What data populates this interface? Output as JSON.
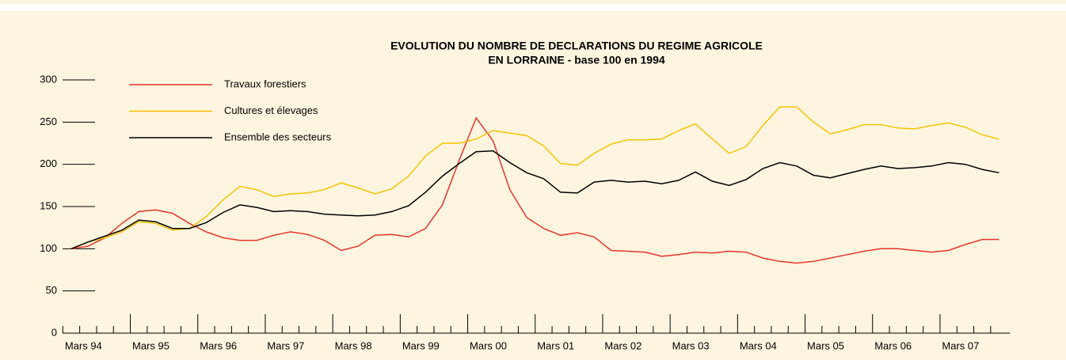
{
  "chart_data": {
    "type": "line",
    "title": "EVOLUTION DU NOMBRE DE DECLARATIONS DU REGIME AGRICOLE",
    "subtitle": "EN LORRAINE - base 100 en 1994",
    "categories": [
      null,
      "Mars 94",
      null,
      null,
      null,
      "Mars 95",
      null,
      null,
      null,
      "Mars 96",
      null,
      null,
      null,
      "Mars 97",
      null,
      null,
      null,
      "Mars 98",
      null,
      null,
      null,
      "Mars 99",
      null,
      null,
      null,
      "Mars 00",
      null,
      null,
      null,
      "Mars 01",
      null,
      null,
      null,
      "Mars 02",
      null,
      null,
      null,
      "Mars 03",
      null,
      null,
      null,
      "Mars 04",
      null,
      null,
      null,
      "Mars 05",
      null,
      null,
      null,
      "Mars 06",
      null,
      null,
      null,
      "Mars 07",
      null,
      null
    ],
    "series": [
      {
        "name": "Travaux forestiers",
        "color": "#e8352a",
        "values": [
          100,
          103,
          113,
          130,
          144,
          146,
          142,
          130,
          120,
          113,
          110,
          110,
          116,
          120,
          117,
          110,
          98,
          103,
          116,
          117,
          114,
          124,
          152,
          205,
          255,
          228,
          170,
          137,
          124,
          116,
          119,
          114,
          98,
          97,
          96,
          91,
          93,
          96,
          95,
          97,
          96,
          89,
          85,
          83,
          85,
          89,
          93,
          97,
          100,
          100,
          98,
          96,
          98,
          105,
          111,
          111
        ]
      },
      {
        "name": "Cultures et élevages",
        "color": "#f5c400",
        "values": [
          100,
          108,
          113,
          120,
          132,
          130,
          122,
          124,
          138,
          158,
          174,
          170,
          162,
          165,
          166,
          170,
          178,
          172,
          165,
          171,
          186,
          210,
          225,
          225,
          230,
          240,
          237,
          234,
          222,
          201,
          199,
          213,
          224,
          229,
          229,
          230,
          240,
          248,
          230,
          213,
          221,
          246,
          268,
          268,
          250,
          236,
          241,
          247,
          247,
          243,
          242,
          246,
          249,
          244,
          235,
          230
        ]
      },
      {
        "name": "Ensemble des secteurs",
        "color": "#000000",
        "values": [
          100,
          108,
          115,
          122,
          134,
          132,
          124,
          124,
          131,
          143,
          152,
          149,
          144,
          145,
          144,
          141,
          140,
          139,
          140,
          144,
          151,
          167,
          186,
          201,
          215,
          216,
          202,
          190,
          183,
          167,
          166,
          179,
          181,
          179,
          180,
          177,
          181,
          191,
          180,
          175,
          182,
          195,
          202,
          198,
          187,
          184,
          189,
          194,
          198,
          195,
          196,
          198,
          202,
          200,
          194,
          190
        ]
      }
    ],
    "ylim": [
      0,
      300
    ],
    "yticks": [
      0,
      50,
      100,
      150,
      200,
      250,
      300
    ]
  }
}
